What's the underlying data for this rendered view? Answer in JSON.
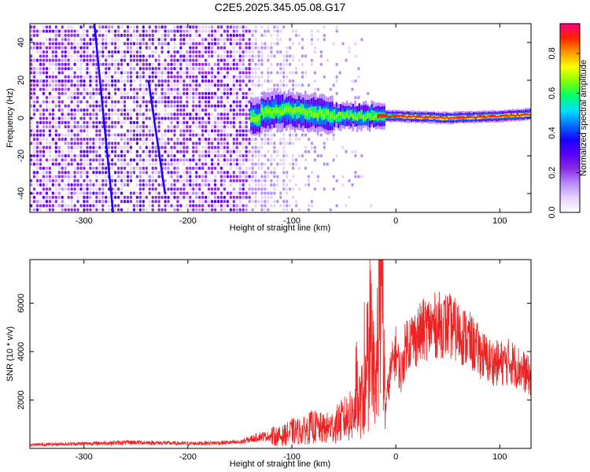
{
  "title": "C2E5.2025.345.05.08.G17",
  "colors": {
    "snr_line": "#ee2222",
    "spectrogram_background": "#ffffff",
    "colormap": [
      "#ffffff",
      "#e6d2ff",
      "#b98cff",
      "#8a2be2",
      "#5a00ff",
      "#1800ff",
      "#0070ff",
      "#00e0ff",
      "#00ff70",
      "#80ff00",
      "#ffff00",
      "#ff9900",
      "#ff2200",
      "#ff0080"
    ]
  },
  "chart_data": [
    {
      "type": "heatmap",
      "name": "spectrogram",
      "xlabel": "Height of straight line (km)",
      "ylabel": "Frequency (Hz)",
      "xlim": [
        -352,
        130
      ],
      "ylim": [
        -50,
        50
      ],
      "xticks": [
        -300,
        -200,
        -100,
        0,
        100
      ],
      "yticks": [
        -40,
        -20,
        0,
        20,
        40
      ],
      "colorbar": {
        "label": "Normalized spectral amplitude",
        "range": [
          0.0,
          0.95
        ],
        "ticks": [
          0.0,
          0.2,
          0.4,
          0.6,
          0.8
        ]
      },
      "signal_ridge": [
        {
          "x": -130,
          "y": 3
        },
        {
          "x": -100,
          "y": 4
        },
        {
          "x": -70,
          "y": 2
        },
        {
          "x": -50,
          "y": 1
        },
        {
          "x": -20,
          "y": 1
        },
        {
          "x": 0,
          "y": 1
        },
        {
          "x": 50,
          "y": 0
        },
        {
          "x": 100,
          "y": 1
        },
        {
          "x": 130,
          "y": 2
        }
      ],
      "streak_lines": [
        {
          "x1": -290,
          "y1": 50,
          "x2": -272,
          "y2": -50
        },
        {
          "x1": -238,
          "y1": 20,
          "x2": -222,
          "y2": -40
        }
      ]
    },
    {
      "type": "line",
      "name": "snr",
      "xlabel": "Height of straight line (km)",
      "ylabel": "SNR (10 * v/v)",
      "xlim": [
        -352,
        130
      ],
      "ylim": [
        0,
        7800
      ],
      "xticks": [
        -300,
        -200,
        -100,
        0,
        100
      ],
      "yticks": [
        2000,
        4000,
        6000
      ],
      "envelope": {
        "x": [
          -352,
          -300,
          -250,
          -200,
          -150,
          -130,
          -110,
          -100,
          -90,
          -80,
          -70,
          -60,
          -50,
          -40,
          -30,
          -25,
          -20,
          -15,
          -12,
          -10,
          -5,
          0,
          5,
          10,
          20,
          30,
          40,
          50,
          60,
          70,
          80,
          90,
          100,
          110,
          120,
          130
        ],
        "y": [
          150,
          200,
          250,
          200,
          250,
          500,
          500,
          700,
          700,
          900,
          800,
          900,
          1200,
          1400,
          2200,
          3000,
          1500,
          7500,
          3500,
          1700,
          3200,
          4000,
          3000,
          4400,
          4600,
          5000,
          5100,
          5100,
          4800,
          4500,
          4000,
          3600,
          3500,
          3600,
          3300,
          2900
        ]
      }
    }
  ]
}
